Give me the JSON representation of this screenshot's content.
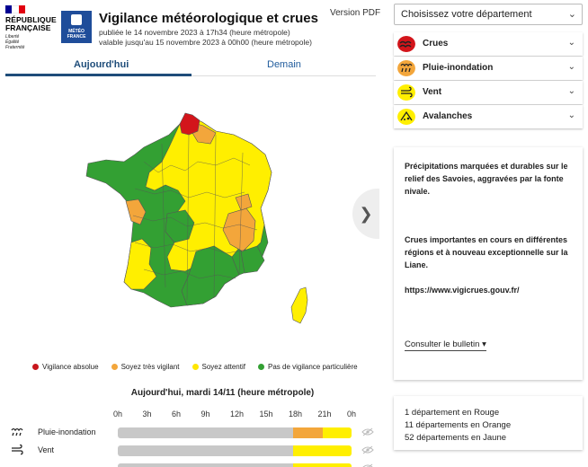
{
  "header": {
    "rf_logo_text": [
      "RÉPUBLIQUE",
      "FRANÇAISE"
    ],
    "rf_motto": [
      "Liberté",
      "Égalité",
      "Fraternité"
    ],
    "mf_logo_text": [
      "MÉTÉO",
      "FRANCE"
    ],
    "title": "Vigilance météorologique et crues",
    "published": "publiée le 14 novembre 2023 à 17h34 (heure métropole)",
    "valid_until": "valable jusqu'au 15 novembre 2023 à 00h00 (heure métropole)",
    "pdf_label": "Version PDF"
  },
  "tabs": [
    {
      "label": "Aujourd'hui",
      "active": true
    },
    {
      "label": "Demain",
      "active": false
    }
  ],
  "map": {
    "colors": {
      "red": "#d3151b",
      "orange": "#f3a63b",
      "yellow": "#ffef00",
      "green": "#33a033"
    },
    "next_icon": "chevron-right-icon"
  },
  "legend": [
    {
      "label": "Vigilance absolue",
      "color": "#c8161c"
    },
    {
      "label": "Soyez très vigilant",
      "color": "#f3a63b"
    },
    {
      "label": "Soyez attentif",
      "color": "#ffe600"
    },
    {
      "label": "Pas de vigilance particulière",
      "color": "#33a033"
    }
  ],
  "timeline": {
    "title": "Aujourd'hui, mardi 14/11 (heure métropole)",
    "hours": [
      "0h",
      "3h",
      "6h",
      "9h",
      "12h",
      "15h",
      "18h",
      "21h",
      "0h"
    ],
    "rows": [
      {
        "label": "Pluie-inondation",
        "icon": "rain-flood-icon",
        "segments": [
          {
            "start": 0,
            "end": 18,
            "color": "#c8c8c8"
          },
          {
            "start": 18,
            "end": 21,
            "color": "#f3a63b"
          },
          {
            "start": 21,
            "end": 24,
            "color": "#ffef00"
          }
        ]
      },
      {
        "label": "Vent",
        "icon": "wind-icon",
        "segments": [
          {
            "start": 0,
            "end": 18,
            "color": "#c8c8c8"
          },
          {
            "start": 18,
            "end": 24,
            "color": "#ffef00"
          }
        ]
      },
      {
        "label": "",
        "icon": "",
        "segments": [
          {
            "start": 0,
            "end": 18,
            "color": "#c8c8c8"
          },
          {
            "start": 18,
            "end": 24,
            "color": "#ffef00"
          }
        ]
      }
    ]
  },
  "sidebar": {
    "select_placeholder": "Choisissez votre département",
    "phenomena": [
      {
        "label": "Crues",
        "color": "#d3151b",
        "icon": "crues-icon"
      },
      {
        "label": "Pluie-inondation",
        "color": "#f3a63b",
        "icon": "rain-flood-icon"
      },
      {
        "label": "Vent",
        "color": "#ffef00",
        "icon": "wind-icon"
      },
      {
        "label": "Avalanches",
        "color": "#ffef00",
        "icon": "avalanche-icon"
      }
    ],
    "info": {
      "p1": "Précipitations marquées et durables sur le relief des Savoies, aggravées par la fonte nivale.",
      "p2": "Crues importantes en cours en différentes régions et à nouveau exceptionnelle sur la Liane.",
      "p3": "https://www.vigicrues.gouv.fr/",
      "bulletin": "Consulter le bulletin ▾"
    },
    "counts": [
      "1 département en Rouge",
      "11 départements en Orange",
      "52 départements en Jaune"
    ]
  }
}
